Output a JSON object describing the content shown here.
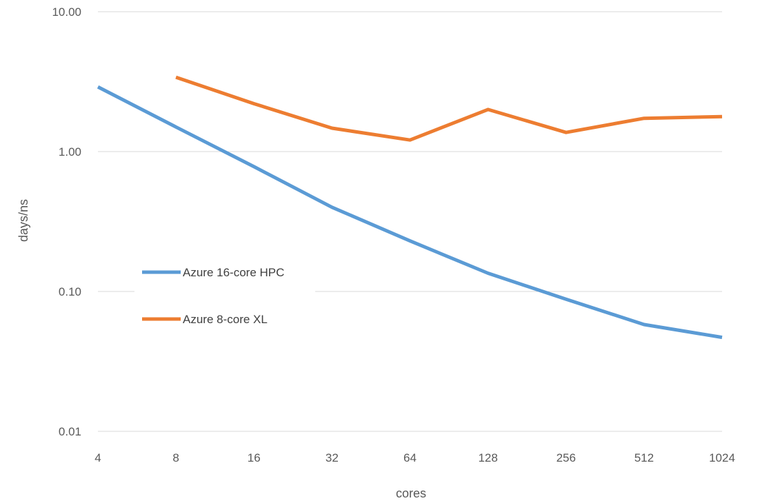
{
  "chart_data": {
    "type": "line",
    "title": "",
    "xlabel": "cores",
    "ylabel": "days/ns",
    "y_scale": "log",
    "ylim": [
      0.01,
      10
    ],
    "grid": true,
    "legend_position": "center-left",
    "categories": [
      "4",
      "8",
      "16",
      "32",
      "64",
      "128",
      "256",
      "512",
      "1024"
    ],
    "y_ticks": [
      "0.01",
      "0.10",
      "1.00",
      "10.00"
    ],
    "series": [
      {
        "name": "Azure 16-core HPC",
        "color": "#5B9BD5",
        "values": [
          2.9,
          1.5,
          0.78,
          0.4,
          0.23,
          0.135,
          0.088,
          0.058,
          0.047
        ]
      },
      {
        "name": "Azure 8-core XL",
        "color": "#ED7D31",
        "values": [
          null,
          3.4,
          2.2,
          1.47,
          1.21,
          2.0,
          1.37,
          1.73,
          1.78
        ]
      }
    ]
  }
}
